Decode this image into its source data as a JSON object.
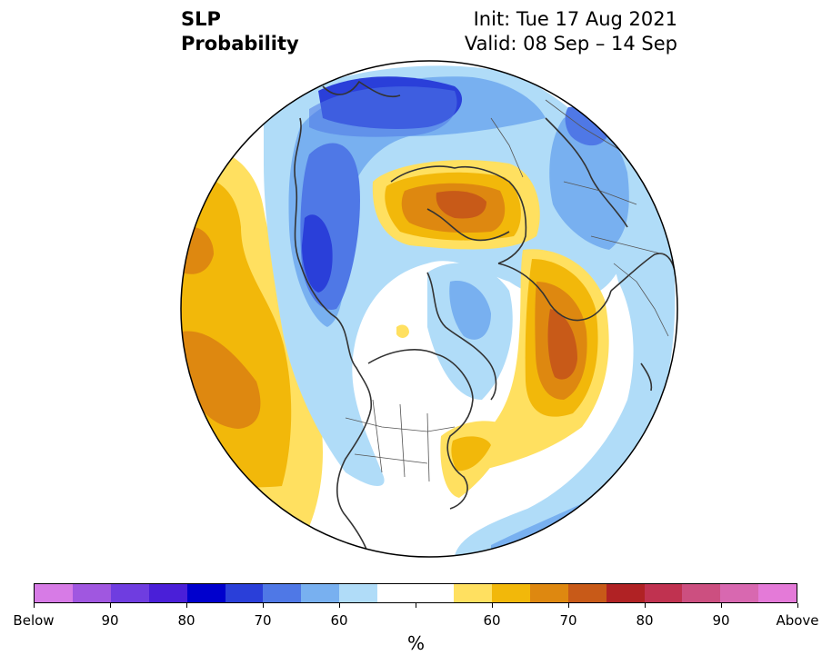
{
  "header": {
    "title_line1": "SLP",
    "title_line2": "Probability",
    "init_text": "Init: Tue 17 Aug 2021",
    "valid_text": "Valid: 08 Sep – 14 Sep"
  },
  "colorbar": {
    "unit_label": "%",
    "colors": [
      "#d77be6",
      "#a057e0",
      "#6f3de0",
      "#4a1fd8",
      "#0000cd",
      "#2a3fd9",
      "#4f78e6",
      "#78b0f0",
      "#b0dcf8",
      "#ffffff",
      "#ffffff",
      "#ffe060",
      "#f2b80a",
      "#de8810",
      "#c85a18",
      "#b02224",
      "#c03250",
      "#cc4f80",
      "#d868b0",
      "#e47ad8"
    ],
    "tick_labels": [
      "Below",
      "90",
      "80",
      "70",
      "60",
      "60",
      "70",
      "80",
      "90",
      "Above"
    ]
  },
  "map": {
    "projection": "north-polar-stereographic",
    "variable": "SLP",
    "colors": {
      "above_60": "#ffe060",
      "above_65": "#f2b80a",
      "above_70": "#de8810",
      "above_75": "#c85a18",
      "below_55": "#b0dcf8",
      "below_60": "#78b0f0",
      "below_65": "#4f78e6",
      "below_70": "#2a3fd9",
      "coastline": "#333333",
      "border": "#555555"
    }
  }
}
